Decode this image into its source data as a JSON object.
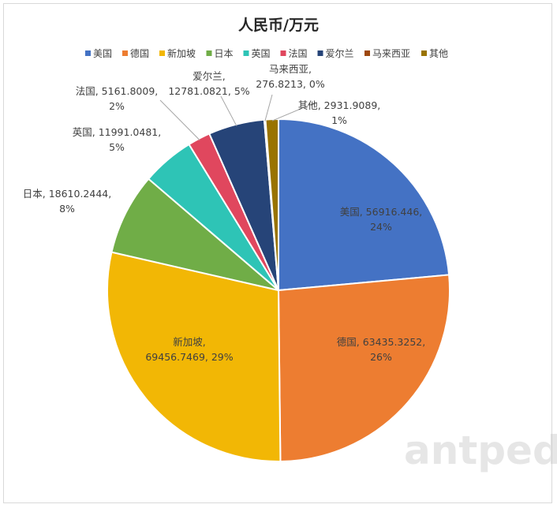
{
  "chart_data": {
    "type": "pie",
    "title": "人民币/万元",
    "legend_position": "top",
    "slices": [
      {
        "name": "美国",
        "value": 56916.446,
        "percent_label": "24%",
        "color": "#4472C4"
      },
      {
        "name": "德国",
        "value": 63435.3252,
        "percent_label": "26%",
        "color": "#ED7D31"
      },
      {
        "name": "新加坡",
        "value": 69456.7469,
        "percent_label": "29%",
        "color": "#F2B705"
      },
      {
        "name": "日本",
        "value": 18610.2444,
        "percent_label": "8%",
        "color": "#70AD47"
      },
      {
        "name": "英国",
        "value": 11991.0481,
        "percent_label": "5%",
        "color": "#2EC4B6"
      },
      {
        "name": "法国",
        "value": 5161.8009,
        "percent_label": "2%",
        "color": "#E0475E"
      },
      {
        "name": "爱尔兰",
        "value": 12781.0821,
        "percent_label": "5%",
        "color": "#264478"
      },
      {
        "name": "马来西亚",
        "value": 276.8213,
        "percent_label": "0%",
        "color": "#9E480E"
      },
      {
        "name": "其他",
        "value": 2931.9089,
        "percent_label": "1%",
        "color": "#997300"
      }
    ],
    "labels": [
      [
        "美国, 56916.446,",
        "24%"
      ],
      [
        "德国, 63435.3252,",
        "26%"
      ],
      [
        "新加坡,",
        "69456.7469, 29%"
      ],
      [
        "日本, 18610.2444,",
        "8%"
      ],
      [
        "英国, 11991.0481,",
        "5%"
      ],
      [
        "法国, 5161.8009,",
        "2%"
      ],
      [
        "爱尔兰,",
        "12781.0821, 5%"
      ],
      [
        "马来西亚,",
        "276.8213, 0%"
      ],
      [
        "其他, 2931.9089,",
        "1%"
      ]
    ]
  },
  "watermark": "antpedia"
}
